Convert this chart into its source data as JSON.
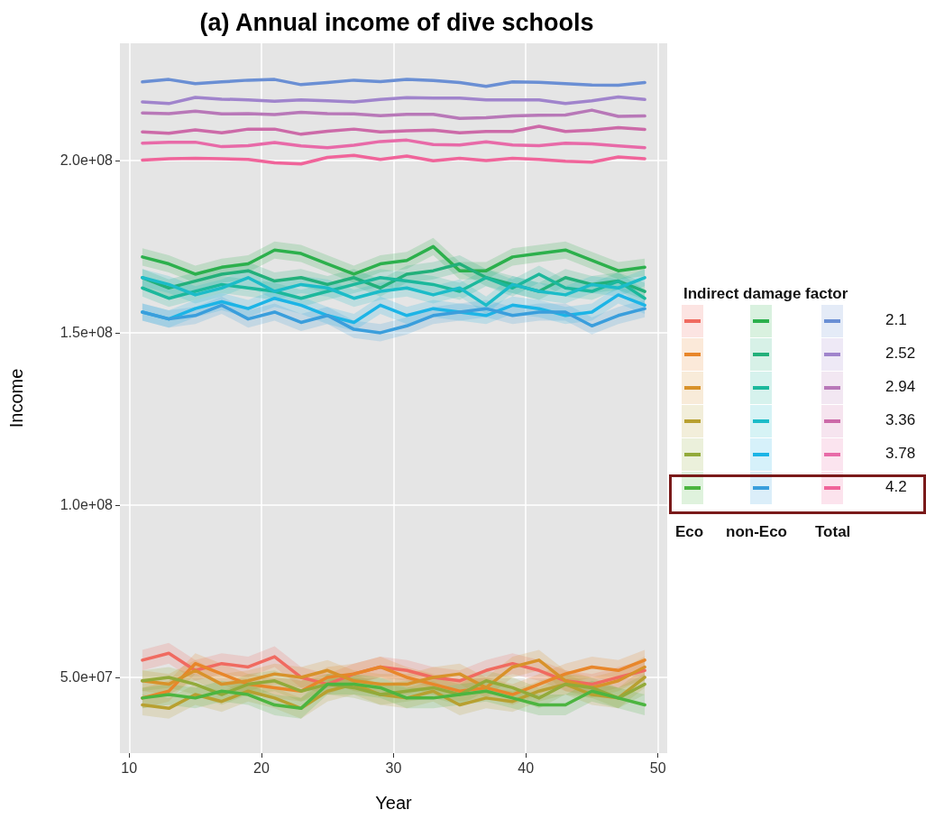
{
  "chart_data": {
    "type": "line",
    "title": "(a) Annual income of dive schools",
    "xlabel": "Year",
    "ylabel": "Income",
    "legend_title": "Indirect damage factor",
    "legend": "right",
    "grid": true,
    "annotations": [
      "Eco",
      "non-Eco",
      "Total"
    ],
    "x": [
      11,
      13,
      15,
      17,
      19,
      21,
      23,
      25,
      27,
      29,
      31,
      33,
      35,
      37,
      39,
      41,
      43,
      45,
      47,
      49
    ],
    "xlim": [
      9.3,
      50.7
    ],
    "xticks": [
      10,
      20,
      30,
      40,
      50
    ],
    "ylim": [
      28000000.0,
      234000000.0
    ],
    "yticks": [
      {
        "value": 50000000.0,
        "label": "5.0e+07"
      },
      {
        "value": 100000000.0,
        "label": "1.0e+08"
      },
      {
        "value": 150000000.0,
        "label": "1.5e+08"
      },
      {
        "value": 200000000.0,
        "label": "2.0e+08"
      }
    ],
    "series": [
      {
        "color": "#f06a60",
        "values": [
          55000000.0,
          57000000.0,
          52000000.0,
          54000000.0,
          53000000.0,
          56000000.0,
          50000000.0,
          48000000.0,
          51000000.0,
          53000000.0,
          52000000.0,
          50000000.0,
          49000000.0,
          52000000.0,
          54000000.0,
          52000000.0,
          49000000.0,
          48000000.0,
          50000000.0,
          52000000.0
        ],
        "lower": [
          52000000.0,
          54000000.0,
          49000000.0,
          51000000.0,
          50000000.0,
          53000000.0,
          47000000.0,
          45000000.0,
          48000000.0,
          50000000.0,
          49000000.0,
          47000000.0,
          46000000.0,
          49000000.0,
          51000000.0,
          49000000.0,
          46000000.0,
          45000000.0,
          47000000.0,
          49000000.0
        ],
        "upper": [
          58000000.0,
          60000000.0,
          55000000.0,
          57000000.0,
          56000000.0,
          59000000.0,
          53000000.0,
          51000000.0,
          54000000.0,
          56000000.0,
          55000000.0,
          53000000.0,
          52000000.0,
          55000000.0,
          57000000.0,
          55000000.0,
          52000000.0,
          51000000.0,
          53000000.0,
          55000000.0
        ]
      },
      {
        "color": "#e8862a",
        "values": [
          44000000.0,
          46000000.0,
          54000000.0,
          51000000.0,
          48000000.0,
          47000000.0,
          46000000.0,
          50000000.0,
          51000000.0,
          53000000.0,
          50000000.0,
          48000000.0,
          46000000.0,
          47000000.0,
          45000000.0,
          48000000.0,
          51000000.0,
          53000000.0,
          52000000.0,
          55000000.0
        ],
        "lower": [
          41000000.0,
          43000000.0,
          51000000.0,
          48000000.0,
          45000000.0,
          44000000.0,
          43000000.0,
          47000000.0,
          48000000.0,
          50000000.0,
          47000000.0,
          45000000.0,
          43000000.0,
          44000000.0,
          42000000.0,
          45000000.0,
          48000000.0,
          50000000.0,
          49000000.0,
          52000000.0
        ],
        "upper": [
          47000000.0,
          49000000.0,
          57000000.0,
          54000000.0,
          51000000.0,
          50000000.0,
          49000000.0,
          53000000.0,
          54000000.0,
          56000000.0,
          53000000.0,
          51000000.0,
          49000000.0,
          50000000.0,
          48000000.0,
          51000000.0,
          54000000.0,
          56000000.0,
          55000000.0,
          58000000.0
        ]
      },
      {
        "color": "#d8922a",
        "values": [
          49000000.0,
          48000000.0,
          52000000.0,
          48000000.0,
          49000000.0,
          51000000.0,
          50000000.0,
          52000000.0,
          49000000.0,
          48000000.0,
          48000000.0,
          50000000.0,
          51000000.0,
          47000000.0,
          53000000.0,
          55000000.0,
          49000000.0,
          47000000.0,
          49000000.0,
          53000000.0
        ],
        "lower": [
          46000000.0,
          45000000.0,
          49000000.0,
          45000000.0,
          46000000.0,
          48000000.0,
          47000000.0,
          49000000.0,
          46000000.0,
          45000000.0,
          45000000.0,
          47000000.0,
          48000000.0,
          44000000.0,
          50000000.0,
          52000000.0,
          46000000.0,
          44000000.0,
          46000000.0,
          50000000.0
        ],
        "upper": [
          52000000.0,
          51000000.0,
          55000000.0,
          51000000.0,
          52000000.0,
          54000000.0,
          53000000.0,
          55000000.0,
          52000000.0,
          51000000.0,
          51000000.0,
          53000000.0,
          54000000.0,
          50000000.0,
          56000000.0,
          58000000.0,
          52000000.0,
          50000000.0,
          52000000.0,
          56000000.0
        ]
      },
      {
        "color": "#b8a030",
        "values": [
          42000000.0,
          41000000.0,
          45000000.0,
          43000000.0,
          46000000.0,
          44000000.0,
          41000000.0,
          46000000.0,
          48000000.0,
          45000000.0,
          44000000.0,
          46000000.0,
          42000000.0,
          44000000.0,
          43000000.0,
          46000000.0,
          48000000.0,
          45000000.0,
          44000000.0,
          50000000.0
        ],
        "lower": [
          39000000.0,
          38000000.0,
          42000000.0,
          40000000.0,
          43000000.0,
          41000000.0,
          38000000.0,
          43000000.0,
          45000000.0,
          42000000.0,
          41000000.0,
          43000000.0,
          39000000.0,
          41000000.0,
          40000000.0,
          43000000.0,
          45000000.0,
          42000000.0,
          41000000.0,
          47000000.0
        ],
        "upper": [
          45000000.0,
          44000000.0,
          48000000.0,
          46000000.0,
          49000000.0,
          47000000.0,
          44000000.0,
          49000000.0,
          51000000.0,
          48000000.0,
          47000000.0,
          49000000.0,
          45000000.0,
          47000000.0,
          46000000.0,
          49000000.0,
          51000000.0,
          48000000.0,
          47000000.0,
          53000000.0
        ]
      },
      {
        "color": "#92aa3a",
        "values": [
          49000000.0,
          50000000.0,
          48000000.0,
          45000000.0,
          48000000.0,
          49000000.0,
          46000000.0,
          48000000.0,
          47000000.0,
          45000000.0,
          46000000.0,
          47000000.0,
          45000000.0,
          49000000.0,
          47000000.0,
          44000000.0,
          48000000.0,
          47000000.0,
          44000000.0,
          48000000.0
        ],
        "lower": [
          46000000.0,
          47000000.0,
          45000000.0,
          42000000.0,
          45000000.0,
          46000000.0,
          43000000.0,
          45000000.0,
          44000000.0,
          42000000.0,
          43000000.0,
          44000000.0,
          42000000.0,
          46000000.0,
          44000000.0,
          41000000.0,
          45000000.0,
          44000000.0,
          41000000.0,
          45000000.0
        ],
        "upper": [
          52000000.0,
          53000000.0,
          51000000.0,
          48000000.0,
          51000000.0,
          52000000.0,
          49000000.0,
          51000000.0,
          50000000.0,
          48000000.0,
          49000000.0,
          50000000.0,
          48000000.0,
          52000000.0,
          50000000.0,
          47000000.0,
          51000000.0,
          50000000.0,
          47000000.0,
          51000000.0
        ]
      },
      {
        "color": "#4cb540",
        "values": [
          44000000.0,
          45000000.0,
          44000000.0,
          46000000.0,
          45000000.0,
          42000000.0,
          41000000.0,
          48000000.0,
          48000000.0,
          47000000.0,
          44000000.0,
          44000000.0,
          45000000.0,
          46000000.0,
          44000000.0,
          42000000.0,
          42000000.0,
          46000000.0,
          44000000.0,
          42000000.0
        ],
        "lower": [
          41000000.0,
          42000000.0,
          41000000.0,
          43000000.0,
          42000000.0,
          39000000.0,
          38000000.0,
          45000000.0,
          45000000.0,
          44000000.0,
          41000000.0,
          41000000.0,
          42000000.0,
          43000000.0,
          41000000.0,
          39000000.0,
          39000000.0,
          43000000.0,
          41000000.0,
          39000000.0
        ],
        "upper": [
          47000000.0,
          48000000.0,
          47000000.0,
          49000000.0,
          48000000.0,
          45000000.0,
          44000000.0,
          51000000.0,
          51000000.0,
          50000000.0,
          47000000.0,
          47000000.0,
          48000000.0,
          49000000.0,
          47000000.0,
          45000000.0,
          45000000.0,
          49000000.0,
          47000000.0,
          45000000.0
        ]
      },
      {
        "color": "#2cb04c",
        "values": [
          172000000.0,
          170000000.0,
          167000000.0,
          169000000.0,
          170000000.0,
          174000000.0,
          173000000.0,
          170000000.0,
          167000000.0,
          170000000.0,
          171000000.0,
          175000000.0,
          168000000.0,
          168000000.0,
          172000000.0,
          173000000.0,
          174000000.0,
          171000000.0,
          168000000.0,
          169000000.0
        ],
        "lower": [
          169500000.0,
          167500000.0,
          164500000.0,
          166500000.0,
          167500000.0,
          171500000.0,
          170500000.0,
          167500000.0,
          164500000.0,
          167500000.0,
          168500000.0,
          172500000.0,
          165500000.0,
          165500000.0,
          169500000.0,
          170500000.0,
          171500000.0,
          168500000.0,
          165500000.0,
          166500000.0
        ],
        "upper": [
          174500000.0,
          172500000.0,
          169500000.0,
          171500000.0,
          172500000.0,
          176500000.0,
          175500000.0,
          172500000.0,
          169500000.0,
          172500000.0,
          173500000.0,
          177500000.0,
          170500000.0,
          170500000.0,
          174500000.0,
          175500000.0,
          176500000.0,
          173500000.0,
          170500000.0,
          171500000.0
        ]
      },
      {
        "color": "#22b07a",
        "values": [
          166000000.0,
          163000000.0,
          165000000.0,
          167000000.0,
          168000000.0,
          165000000.0,
          166000000.0,
          164000000.0,
          166000000.0,
          163000000.0,
          167000000.0,
          168000000.0,
          170000000.0,
          166000000.0,
          164000000.0,
          162000000.0,
          166000000.0,
          164000000.0,
          165000000.0,
          162000000.0
        ],
        "lower": [
          163500000.0,
          160500000.0,
          162500000.0,
          164500000.0,
          165500000.0,
          162500000.0,
          163500000.0,
          161500000.0,
          163500000.0,
          160500000.0,
          164500000.0,
          165500000.0,
          167500000.0,
          163500000.0,
          161500000.0,
          159500000.0,
          163500000.0,
          161500000.0,
          162500000.0,
          159500000.0
        ],
        "upper": [
          168500000.0,
          165500000.0,
          167500000.0,
          169500000.0,
          170500000.0,
          167500000.0,
          168500000.0,
          166500000.0,
          168500000.0,
          165500000.0,
          169500000.0,
          170500000.0,
          172500000.0,
          168500000.0,
          166500000.0,
          164500000.0,
          168500000.0,
          166500000.0,
          167500000.0,
          164500000.0
        ]
      },
      {
        "color": "#1cb89c",
        "values": [
          163000000.0,
          160000000.0,
          162000000.0,
          164000000.0,
          163000000.0,
          162000000.0,
          160000000.0,
          162000000.0,
          164000000.0,
          166000000.0,
          165000000.0,
          164000000.0,
          162000000.0,
          166000000.0,
          163000000.0,
          167000000.0,
          163000000.0,
          162000000.0,
          165000000.0,
          160000000.0
        ],
        "lower": [
          160500000.0,
          157500000.0,
          159500000.0,
          161500000.0,
          160500000.0,
          159500000.0,
          157500000.0,
          159500000.0,
          161500000.0,
          163500000.0,
          162500000.0,
          161500000.0,
          159500000.0,
          163500000.0,
          160500000.0,
          164500000.0,
          160500000.0,
          159500000.0,
          162500000.0,
          157500000.0
        ],
        "upper": [
          165500000.0,
          162500000.0,
          164500000.0,
          166500000.0,
          165500000.0,
          164500000.0,
          162500000.0,
          164500000.0,
          166500000.0,
          168500000.0,
          167500000.0,
          166500000.0,
          164500000.0,
          168500000.0,
          165500000.0,
          169500000.0,
          165500000.0,
          164500000.0,
          167500000.0,
          162500000.0
        ]
      },
      {
        "color": "#1cbcc8",
        "values": [
          166000000.0,
          164000000.0,
          161000000.0,
          163000000.0,
          166000000.0,
          162000000.0,
          164000000.0,
          163000000.0,
          160000000.0,
          162000000.0,
          163000000.0,
          161000000.0,
          163000000.0,
          158000000.0,
          164000000.0,
          162000000.0,
          161000000.0,
          164000000.0,
          163000000.0,
          166000000.0
        ],
        "lower": [
          163500000.0,
          161500000.0,
          158500000.0,
          160500000.0,
          163500000.0,
          159500000.0,
          161500000.0,
          160500000.0,
          157500000.0,
          159500000.0,
          160500000.0,
          158500000.0,
          160500000.0,
          155500000.0,
          161500000.0,
          159500000.0,
          158500000.0,
          161500000.0,
          160500000.0,
          163500000.0
        ],
        "upper": [
          168500000.0,
          166500000.0,
          163500000.0,
          165500000.0,
          168500000.0,
          164500000.0,
          166500000.0,
          165500000.0,
          162500000.0,
          164500000.0,
          165500000.0,
          163500000.0,
          165500000.0,
          160500000.0,
          166500000.0,
          164500000.0,
          163500000.0,
          166500000.0,
          165500000.0,
          168500000.0
        ]
      },
      {
        "color": "#1cb4e6",
        "values": [
          156000000.0,
          154000000.0,
          157000000.0,
          159000000.0,
          157000000.0,
          160000000.0,
          158000000.0,
          155000000.0,
          153000000.0,
          158000000.0,
          155000000.0,
          157000000.0,
          156000000.0,
          155000000.0,
          158000000.0,
          157000000.0,
          155000000.0,
          156000000.0,
          161000000.0,
          158000000.0
        ],
        "lower": [
          153500000.0,
          151500000.0,
          154500000.0,
          156500000.0,
          154500000.0,
          157500000.0,
          155500000.0,
          152500000.0,
          150500000.0,
          155500000.0,
          152500000.0,
          154500000.0,
          153500000.0,
          152500000.0,
          155500000.0,
          154500000.0,
          152500000.0,
          153500000.0,
          158500000.0,
          155500000.0
        ],
        "upper": [
          158500000.0,
          156500000.0,
          159500000.0,
          161500000.0,
          159500000.0,
          162500000.0,
          160500000.0,
          157500000.0,
          155500000.0,
          160500000.0,
          157500000.0,
          159500000.0,
          158500000.0,
          157500000.0,
          160500000.0,
          159500000.0,
          157500000.0,
          158500000.0,
          163500000.0,
          160500000.0
        ]
      },
      {
        "color": "#3a9edc",
        "values": [
          156000000.0,
          154000000.0,
          155000000.0,
          158000000.0,
          154000000.0,
          156000000.0,
          153000000.0,
          155000000.0,
          151000000.0,
          150000000.0,
          152000000.0,
          155000000.0,
          156000000.0,
          157000000.0,
          155000000.0,
          156000000.0,
          156000000.0,
          152000000.0,
          155000000.0,
          157000000.0
        ],
        "lower": [
          153500000.0,
          151500000.0,
          152500000.0,
          155500000.0,
          151500000.0,
          153500000.0,
          150500000.0,
          152500000.0,
          148500000.0,
          147500000.0,
          149500000.0,
          152500000.0,
          153500000.0,
          154500000.0,
          152500000.0,
          153500000.0,
          153500000.0,
          149500000.0,
          152500000.0,
          154500000.0
        ],
        "upper": [
          158500000.0,
          156500000.0,
          157500000.0,
          160500000.0,
          156500000.0,
          158500000.0,
          155500000.0,
          157500000.0,
          153500000.0,
          152500000.0,
          154500000.0,
          157500000.0,
          158500000.0,
          159500000.0,
          157500000.0,
          158500000.0,
          158500000.0,
          154500000.0,
          157500000.0,
          159500000.0
        ]
      },
      {
        "name": "2.1",
        "color": "#6a8fd4",
        "values": [
          222800000.0,
          223500000.0,
          222300000.0,
          222800000.0,
          223300000.0,
          223500000.0,
          222000000.0,
          222600000.0,
          223300000.0,
          222900000.0,
          223500000.0,
          223200000.0,
          222600000.0,
          221500000.0,
          222800000.0,
          222700000.0,
          222300000.0,
          221900000.0,
          221800000.0,
          222600000.0
        ]
      },
      {
        "name": "2.52",
        "color": "#a084cc",
        "values": [
          217000000.0,
          216500000.0,
          218300000.0,
          217800000.0,
          217600000.0,
          217200000.0,
          217600000.0,
          217300000.0,
          217000000.0,
          217700000.0,
          218200000.0,
          218100000.0,
          218100000.0,
          217600000.0,
          217600000.0,
          217600000.0,
          216500000.0,
          217300000.0,
          218400000.0,
          217700000.0
        ]
      },
      {
        "name": "2.94",
        "color": "#b878b8",
        "values": [
          213800000.0,
          213600000.0,
          214300000.0,
          213500000.0,
          213600000.0,
          213300000.0,
          214000000.0,
          213600000.0,
          213500000.0,
          213000000.0,
          213400000.0,
          213400000.0,
          212200000.0,
          212400000.0,
          212900000.0,
          213100000.0,
          213200000.0,
          214600000.0,
          212800000.0,
          212900000.0
        ]
      },
      {
        "name": "3.36",
        "color": "#cc6aa8",
        "values": [
          208300000.0,
          207900000.0,
          208900000.0,
          208000000.0,
          209100000.0,
          209100000.0,
          207600000.0,
          208500000.0,
          209100000.0,
          208300000.0,
          208600000.0,
          208800000.0,
          208000000.0,
          208400000.0,
          208400000.0,
          209900000.0,
          208400000.0,
          208800000.0,
          209500000.0,
          209000000.0
        ]
      },
      {
        "name": "3.78",
        "color": "#e86aa8",
        "values": [
          205000000.0,
          205300000.0,
          205300000.0,
          204000000.0,
          204300000.0,
          205200000.0,
          204200000.0,
          203700000.0,
          204400000.0,
          205500000.0,
          205900000.0,
          204600000.0,
          204500000.0,
          205400000.0,
          204500000.0,
          204300000.0,
          205000000.0,
          204800000.0,
          204200000.0,
          203700000.0
        ]
      },
      {
        "name": "4.2",
        "color": "#f0649a",
        "values": [
          200100000.0,
          200500000.0,
          200600000.0,
          200500000.0,
          200300000.0,
          199300000.0,
          199000000.0,
          200900000.0,
          201500000.0,
          200300000.0,
          201300000.0,
          199900000.0,
          200600000.0,
          200000000.0,
          200600000.0,
          200300000.0,
          199800000.0,
          199500000.0,
          201000000.0,
          200500000.0
        ]
      }
    ]
  }
}
